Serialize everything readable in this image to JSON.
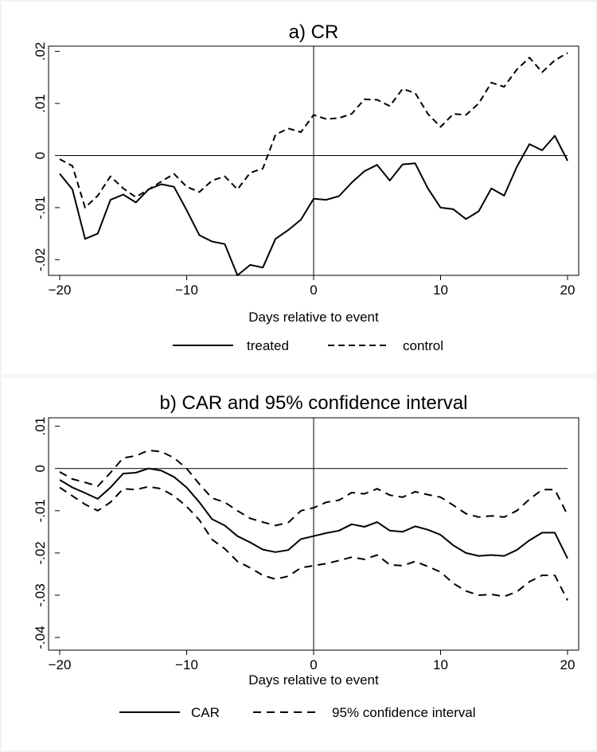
{
  "chart_data": [
    {
      "type": "line",
      "title": "a) CR",
      "xlabel": "Days relative to event",
      "ylabel": "",
      "xlim": [
        -20,
        20
      ],
      "ylim": [
        -0.023,
        0.021
      ],
      "x_ticks": [
        -20,
        -10,
        0,
        10,
        20
      ],
      "x_tick_labels": [
        "−20",
        "−10",
        "0",
        "10",
        "20"
      ],
      "y_ticks": [
        -0.02,
        -0.01,
        0,
        0.01,
        0.02
      ],
      "y_tick_labels": [
        "-.02",
        "-.01",
        "0",
        ".01",
        ".02"
      ],
      "reference_lines": {
        "y": 0,
        "x": 0
      },
      "x": [
        -20,
        -19,
        -18,
        -17,
        -16,
        -15,
        -14,
        -13,
        -12,
        -11,
        -10,
        -9,
        -8,
        -7,
        -6,
        -5,
        -4,
        -3,
        -2,
        -1,
        0,
        1,
        2,
        3,
        4,
        5,
        6,
        7,
        8,
        9,
        10,
        11,
        12,
        13,
        14,
        15,
        16,
        17,
        18,
        19,
        20
      ],
      "series": [
        {
          "name": "treated",
          "style": "solid",
          "values": [
            -0.0035,
            -0.0065,
            -0.016,
            -0.015,
            -0.0085,
            -0.0075,
            -0.009,
            -0.0065,
            -0.0055,
            -0.006,
            -0.0105,
            -0.0153,
            -0.0165,
            -0.017,
            -0.023,
            -0.021,
            -0.0215,
            -0.016,
            -0.0143,
            -0.0123,
            -0.0083,
            -0.0085,
            -0.0078,
            -0.0052,
            -0.003,
            -0.0018,
            -0.0048,
            -0.0017,
            -0.0015,
            -0.0063,
            -0.01,
            -0.0103,
            -0.0122,
            -0.0107,
            -0.0063,
            -0.0077,
            -0.0022,
            0.0022,
            0.001,
            0.0038,
            -0.001
          ]
        },
        {
          "name": "control",
          "style": "dashed",
          "values": [
            -0.0007,
            -0.002,
            -0.01,
            -0.0077,
            -0.004,
            -0.0063,
            -0.008,
            -0.0065,
            -0.005,
            -0.0035,
            -0.006,
            -0.007,
            -0.0048,
            -0.004,
            -0.0065,
            -0.0033,
            -0.0025,
            0.004,
            0.0052,
            0.0045,
            0.0078,
            0.007,
            0.0072,
            0.008,
            0.0108,
            0.0107,
            0.0095,
            0.0128,
            0.012,
            0.008,
            0.0055,
            0.008,
            0.0078,
            0.01,
            0.014,
            0.0132,
            0.0165,
            0.0188,
            0.016,
            0.0183,
            0.0197
          ]
        }
      ],
      "legend": {
        "position": "bottom",
        "items": [
          "treated",
          "control"
        ]
      }
    },
    {
      "type": "line",
      "title": "b) CAR and 95% confidence interval",
      "xlabel": "Days relative to event",
      "ylabel": "",
      "xlim": [
        -20,
        20
      ],
      "ylim": [
        -0.043,
        0.012
      ],
      "x_ticks": [
        -20,
        -10,
        0,
        10,
        20
      ],
      "x_tick_labels": [
        "−20",
        "−10",
        "0",
        "10",
        "20"
      ],
      "y_ticks": [
        -0.04,
        -0.03,
        -0.02,
        -0.01,
        0,
        0.01
      ],
      "y_tick_labels": [
        "-.04",
        "-.03",
        "-.02",
        "-.01",
        "0",
        ".01"
      ],
      "reference_lines": {
        "y": 0,
        "x": 0
      },
      "x": [
        -20,
        -19,
        -18,
        -17,
        -16,
        -15,
        -14,
        -13,
        -12,
        -11,
        -10,
        -9,
        -8,
        -7,
        -6,
        -5,
        -4,
        -3,
        -2,
        -1,
        0,
        1,
        2,
        3,
        4,
        5,
        6,
        7,
        8,
        9,
        10,
        11,
        12,
        13,
        14,
        15,
        16,
        17,
        18,
        19,
        20
      ],
      "series": [
        {
          "name": "CAR",
          "style": "solid",
          "values": [
            -0.0027,
            -0.0045,
            -0.0058,
            -0.0072,
            -0.0045,
            -0.0012,
            -0.001,
            0.0,
            -0.0005,
            -0.002,
            -0.0045,
            -0.008,
            -0.012,
            -0.0135,
            -0.016,
            -0.0175,
            -0.0192,
            -0.0198,
            -0.0193,
            -0.0167,
            -0.016,
            -0.0153,
            -0.0147,
            -0.0132,
            -0.0138,
            -0.0127,
            -0.0147,
            -0.015,
            -0.0137,
            -0.0145,
            -0.0157,
            -0.0182,
            -0.02,
            -0.0207,
            -0.0205,
            -0.0207,
            -0.0193,
            -0.017,
            -0.0152,
            -0.0152,
            -0.0213
          ]
        },
        {
          "name": "95% confidence interval (upper)",
          "style": "dashed",
          "values": [
            -0.0008,
            -0.0025,
            -0.0033,
            -0.0042,
            -0.001,
            0.0025,
            0.003,
            0.0043,
            0.004,
            0.0025,
            0.0,
            -0.0037,
            -0.007,
            -0.008,
            -0.01,
            -0.0118,
            -0.0127,
            -0.0135,
            -0.0128,
            -0.01,
            -0.0093,
            -0.008,
            -0.0075,
            -0.0057,
            -0.006,
            -0.0048,
            -0.0063,
            -0.0068,
            -0.0055,
            -0.0062,
            -0.0068,
            -0.0087,
            -0.0107,
            -0.0115,
            -0.0112,
            -0.0115,
            -0.01,
            -0.0073,
            -0.005,
            -0.005,
            -0.011
          ]
        },
        {
          "name": "95% confidence interval (lower)",
          "style": "dashed",
          "values": [
            -0.0045,
            -0.0065,
            -0.0085,
            -0.01,
            -0.008,
            -0.0048,
            -0.005,
            -0.0043,
            -0.0048,
            -0.0065,
            -0.009,
            -0.0122,
            -0.0168,
            -0.019,
            -0.022,
            -0.0235,
            -0.0253,
            -0.0262,
            -0.0255,
            -0.0235,
            -0.023,
            -0.0225,
            -0.0218,
            -0.021,
            -0.0215,
            -0.0205,
            -0.0228,
            -0.023,
            -0.022,
            -0.0232,
            -0.0245,
            -0.0272,
            -0.029,
            -0.03,
            -0.0298,
            -0.0303,
            -0.0292,
            -0.0268,
            -0.0253,
            -0.0253,
            -0.0312
          ]
        }
      ],
      "legend": {
        "position": "bottom",
        "items": [
          "CAR",
          "95% confidence interval"
        ]
      }
    }
  ]
}
